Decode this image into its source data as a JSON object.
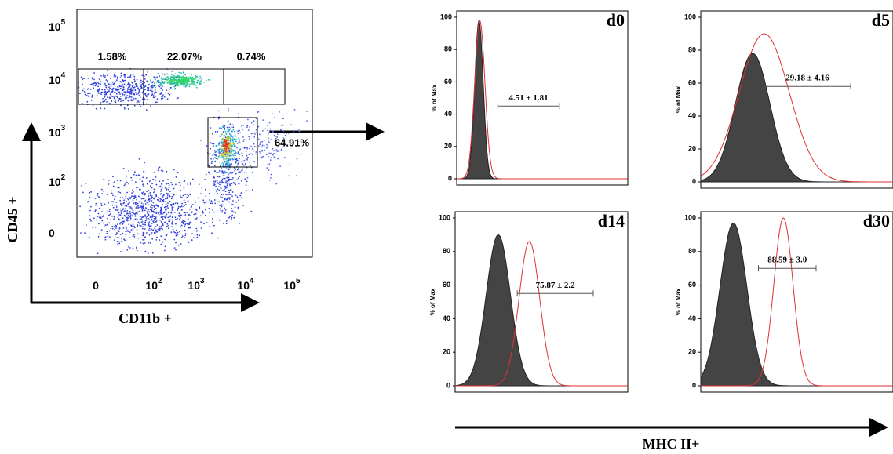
{
  "scatter_panel": {
    "y_axis_label": "CD45 +",
    "x_axis_label": "CD11b +",
    "y_ticks": [
      {
        "base": "10",
        "exp": "5"
      },
      {
        "base": "10",
        "exp": "4"
      },
      {
        "base": "10",
        "exp": "3"
      },
      {
        "base": "10",
        "exp": "2"
      },
      {
        "base": "0",
        "exp": ""
      }
    ],
    "x_ticks": [
      {
        "base": "0",
        "exp": ""
      },
      {
        "base": "10",
        "exp": "2"
      },
      {
        "base": "10",
        "exp": "3"
      },
      {
        "base": "10",
        "exp": "4"
      },
      {
        "base": "10",
        "exp": "5"
      }
    ],
    "gates": [
      "1.58%",
      "22.07%",
      "0.74%",
      "64.91%"
    ]
  },
  "histograms": {
    "y_axis_label": "% of Max",
    "y_ticks": [
      "100",
      "80",
      "60",
      "40",
      "20",
      "0"
    ],
    "x_axis_label": "MHC II+",
    "panels": [
      {
        "label": "d0",
        "annotation": "4.51 ± 1.81"
      },
      {
        "label": "d5",
        "annotation": "29.18 ± 4.16"
      },
      {
        "label": "d14",
        "annotation": "75.87 ± 2.2"
      },
      {
        "label": "d30",
        "annotation": "88.59 ± 3.0"
      }
    ]
  }
}
